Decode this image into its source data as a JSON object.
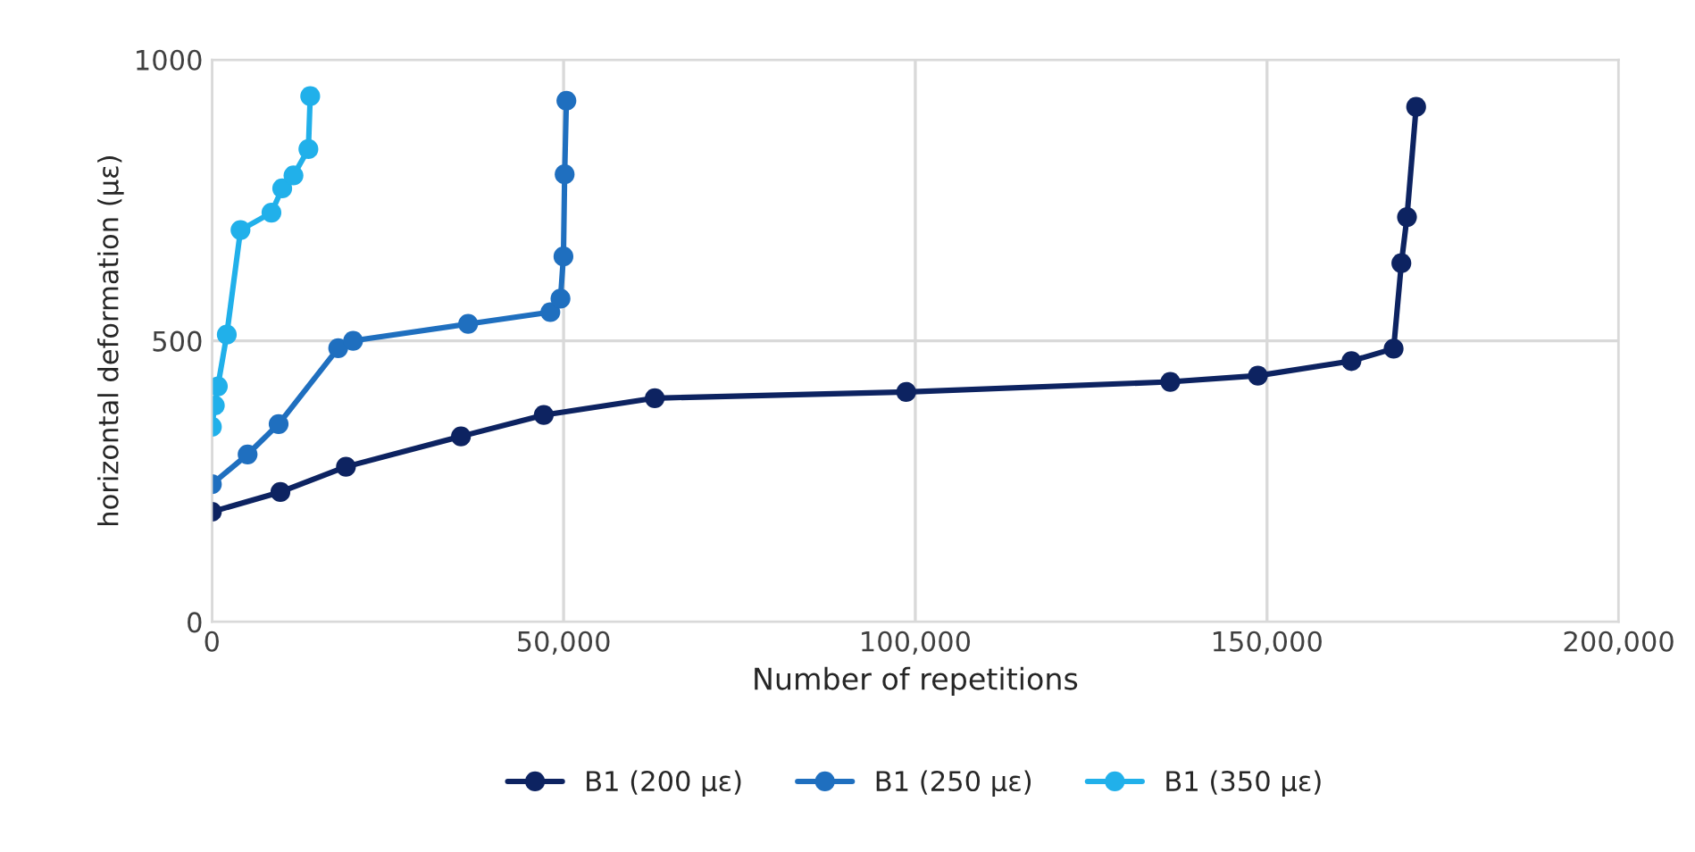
{
  "chart_data": {
    "type": "line",
    "xlabel": "Number of repetitions",
    "ylabel": "horizontal deformation (με)",
    "xlim": [
      0,
      200000
    ],
    "xticks": [
      0,
      {
        "value": 50000,
        "label": "50,000"
      },
      {
        "value": 100000,
        "label": "100,000"
      },
      {
        "value": 150000,
        "label": "150,000"
      },
      {
        "value": 200000,
        "label": "200,000"
      }
    ],
    "ylim": [
      0,
      1000
    ],
    "yticks": [
      0,
      500,
      1000
    ],
    "grid": true,
    "legend": "bottom",
    "marker": "circle",
    "line_style": "solid",
    "series": [
      {
        "name": "B1 (200 με)",
        "color": "#0d2361",
        "x": [
          0,
          9740,
          19060,
          35410,
          47180,
          62960,
          98710,
          136250,
          148700,
          162000,
          168000,
          169100,
          169900,
          171200
        ],
        "values": [
          196,
          231,
          276,
          330,
          368,
          398,
          409,
          427,
          438,
          464,
          486,
          638,
          720,
          916
        ]
      },
      {
        "name": "B1 (250 με)",
        "color": "#1f6fbf",
        "x": [
          0,
          5080,
          9490,
          17960,
          20080,
          36430,
          48120,
          49560,
          49980,
          50150,
          50400
        ],
        "values": [
          245,
          298,
          352,
          487,
          500,
          530,
          551,
          575,
          650,
          796,
          927
        ]
      },
      {
        "name": "B1 (350 με)",
        "color": "#21b0ea",
        "x": [
          0,
          420,
          850,
          2120,
          4070,
          8470,
          10000,
          11600,
          13720,
          13980
        ],
        "values": [
          347,
          385,
          419,
          511,
          697,
          728,
          771,
          794,
          841,
          935
        ]
      }
    ]
  }
}
